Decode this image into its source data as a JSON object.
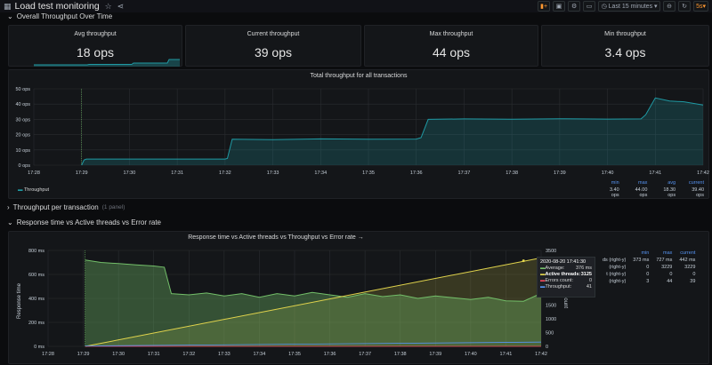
{
  "header": {
    "title": "Load test monitoring",
    "time_range": "Last 15 minutes",
    "refresh": "5s"
  },
  "rows": {
    "overall": "Overall Throughput Over Time",
    "per_tx": "Throughput per transaction",
    "per_tx_count": "(1 panel)",
    "response": "Response time vs Active threads vs Error rate"
  },
  "stats": [
    {
      "title": "Avg throughput",
      "value": "18 ops"
    },
    {
      "title": "Current throughput",
      "value": "39 ops"
    },
    {
      "title": "Max throughput",
      "value": "44 ops"
    },
    {
      "title": "Min throughput",
      "value": "3.4 ops"
    }
  ],
  "total_panel": {
    "title": "Total throughput for all transactions",
    "legend_name": "Throughput",
    "legend_headers": [
      "min",
      "max",
      "avg",
      "current"
    ],
    "legend_values": [
      "3.40 ops",
      "44.00 ops",
      "18.30 ops",
      "39.40 ops"
    ]
  },
  "response_panel": {
    "title": "Response time vs Active threads vs Throughput vs Error rate",
    "title_suffix": "→",
    "ylabel": "Response time",
    "ylabel_right": "Count",
    "legend_headers": [
      "min",
      "max",
      "current"
    ],
    "legend_rows": [
      {
        "label": "ds (right-y)",
        "values": [
          "373 ms",
          "727 ms",
          "442 ms"
        ]
      },
      {
        "label": "(right-y)",
        "values": [
          "0",
          "3229",
          "3229"
        ]
      },
      {
        "label": "t (right-y)",
        "values": [
          "0",
          "0",
          "0"
        ]
      },
      {
        "label": "(right-y)",
        "values": [
          "3",
          "44",
          "39"
        ]
      }
    ],
    "tooltip": {
      "time": "2020-08-20 17:41:30",
      "rows": [
        {
          "label": "Average:",
          "value": "376 ms"
        },
        {
          "label": "Active threads:",
          "value": "3125"
        },
        {
          "label": "Errors count:",
          "value": "0"
        },
        {
          "label": "Throughput:",
          "value": "41"
        }
      ]
    }
  },
  "colors": {
    "throughput": "#1f9aa4",
    "response": "#73bf69",
    "threads": "#e0d34c",
    "errors": "#f2495c",
    "tput2": "#5794f2"
  },
  "chart_data": [
    {
      "type": "area",
      "title": "Total throughput for all transactions",
      "x": [
        "17:28",
        "17:29",
        "17:30",
        "17:31",
        "17:32",
        "17:33",
        "17:34",
        "17:35",
        "17:36",
        "17:37",
        "17:38",
        "17:39",
        "17:40",
        "17:41",
        "17:42"
      ],
      "ytick_labels": [
        "50 ops",
        "40 ops",
        "30 ops",
        "20 ops",
        "10 ops",
        "0 ops"
      ],
      "ylim": [
        0,
        50
      ],
      "series": [
        {
          "name": "Throughput",
          "points": [
            [
              1.0,
              0
            ],
            [
              1.05,
              3.4
            ],
            [
              1.1,
              4
            ],
            [
              4,
              4
            ],
            [
              4.05,
              4.4
            ],
            [
              4.15,
              17
            ],
            [
              5,
              16.7
            ],
            [
              6,
              17.2
            ],
            [
              7,
              17
            ],
            [
              8,
              17.1
            ],
            [
              8.1,
              18
            ],
            [
              8.25,
              30
            ],
            [
              9,
              30.3
            ],
            [
              10,
              30.1
            ],
            [
              11,
              30.4
            ],
            [
              12,
              30.2
            ],
            [
              12.7,
              30.3
            ],
            [
              12.8,
              33
            ],
            [
              13,
              44
            ],
            [
              13.3,
              42
            ],
            [
              13.6,
              41.5
            ],
            [
              14,
              39.4
            ]
          ]
        }
      ]
    },
    {
      "type": "line",
      "title": "Response time vs Active threads vs Throughput vs Error rate",
      "x": [
        "17:28",
        "17:29",
        "17:30",
        "17:31",
        "17:32",
        "17:33",
        "17:34",
        "17:35",
        "17:36",
        "17:37",
        "17:38",
        "17:39",
        "17:40",
        "17:41",
        "17:42"
      ],
      "ytick_labels": [
        "800 ms",
        "600 ms",
        "400 ms",
        "200 ms",
        "0 ms"
      ],
      "ytick_labels_right": [
        "3500",
        "3000",
        "2500",
        "2000",
        "1500",
        "1000",
        "500",
        "0"
      ],
      "ylim": [
        0,
        800
      ],
      "ylim_right": [
        0,
        3500
      ],
      "series": [
        {
          "name": "Average",
          "axis": "left",
          "points": [
            [
              1.05,
              720
            ],
            [
              1.5,
              700
            ],
            [
              2,
              690
            ],
            [
              2.5,
              680
            ],
            [
              3,
              670
            ],
            [
              3.3,
              660
            ],
            [
              3.5,
              440
            ],
            [
              4,
              430
            ],
            [
              4.5,
              445
            ],
            [
              5,
              420
            ],
            [
              5.5,
              440
            ],
            [
              6,
              410
            ],
            [
              6.5,
              440
            ],
            [
              7,
              420
            ],
            [
              7.5,
              450
            ],
            [
              8,
              430
            ],
            [
              8.5,
              410
            ],
            [
              9,
              440
            ],
            [
              9.5,
              415
            ],
            [
              10,
              430
            ],
            [
              10.5,
              400
            ],
            [
              11,
              420
            ],
            [
              11.5,
              405
            ],
            [
              12,
              390
            ],
            [
              12.5,
              410
            ],
            [
              13,
              380
            ],
            [
              13.5,
              376
            ],
            [
              14,
              442
            ]
          ]
        },
        {
          "name": "Active threads",
          "axis": "right",
          "points": [
            [
              1.05,
              0
            ],
            [
              14,
              3229
            ]
          ]
        },
        {
          "name": "Errors count",
          "axis": "right",
          "points": [
            [
              1.05,
              0
            ],
            [
              14,
              0
            ]
          ]
        },
        {
          "name": "Throughput",
          "axis": "right",
          "points": [
            [
              1.05,
              3
            ],
            [
              14,
              39
            ]
          ]
        }
      ]
    }
  ]
}
